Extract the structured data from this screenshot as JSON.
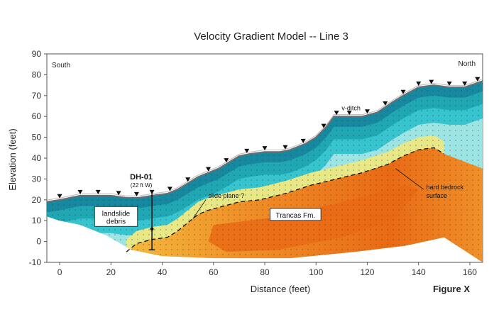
{
  "chart_data": {
    "type": "section",
    "title": "Velocity Gradient Model -- Line 3",
    "xlabel": "Distance (feet)",
    "ylabel": "Elevation (feet)",
    "figure_label": "Figure X",
    "xlim": [
      -5,
      165
    ],
    "ylim": [
      -10,
      90
    ],
    "xticks": [
      0,
      20,
      40,
      60,
      80,
      100,
      120,
      140,
      160
    ],
    "yticks": [
      -10,
      0,
      10,
      20,
      30,
      40,
      50,
      60,
      70,
      80,
      90
    ],
    "direction_labels": {
      "left": "South",
      "right": "North"
    },
    "ground_surface": [
      [
        -5,
        19
      ],
      [
        0,
        20
      ],
      [
        8,
        22
      ],
      [
        14,
        22
      ],
      [
        20,
        22
      ],
      [
        26,
        21
      ],
      [
        31,
        21
      ],
      [
        36,
        22
      ],
      [
        42,
        23
      ],
      [
        46,
        25
      ],
      [
        50,
        28
      ],
      [
        54,
        31
      ],
      [
        58,
        33
      ],
      [
        62,
        35
      ],
      [
        66,
        38
      ],
      [
        70,
        41
      ],
      [
        74,
        42
      ],
      [
        80,
        43
      ],
      [
        86,
        43
      ],
      [
        90,
        44
      ],
      [
        96,
        47
      ],
      [
        100,
        50
      ],
      [
        104,
        55
      ],
      [
        107,
        60
      ],
      [
        112,
        60
      ],
      [
        118,
        60
      ],
      [
        124,
        62
      ],
      [
        130,
        67
      ],
      [
        134,
        70
      ],
      [
        140,
        74
      ],
      [
        146,
        75
      ],
      [
        152,
        74
      ],
      [
        158,
        74
      ],
      [
        165,
        77
      ]
    ],
    "geophones_x": [
      0,
      8,
      15,
      23,
      30,
      36,
      43,
      50,
      58,
      65,
      73,
      80,
      88,
      95,
      103,
      108,
      113,
      120,
      127,
      134,
      140,
      145,
      152,
      158,
      163
    ],
    "slide_plane": [
      [
        26,
        -5
      ],
      [
        30,
        -1
      ],
      [
        36,
        1
      ],
      [
        42,
        2
      ],
      [
        46,
        5
      ],
      [
        50,
        9
      ],
      [
        54,
        13
      ],
      [
        58,
        15
      ],
      [
        64,
        17
      ],
      [
        70,
        19
      ],
      [
        78,
        20
      ],
      [
        88,
        23
      ],
      [
        98,
        27
      ],
      [
        108,
        30
      ],
      [
        118,
        33
      ],
      [
        128,
        37
      ],
      [
        134,
        41
      ],
      [
        140,
        44
      ],
      [
        146,
        45
      ],
      [
        150,
        42
      ]
    ],
    "borehole": {
      "label": "DH-01",
      "sublabel": "(22 ft W)",
      "x": 36,
      "top": 23,
      "bottom": -4,
      "sample_depth": 6
    },
    "annotations": [
      {
        "text": "v-ditch",
        "x": 110,
        "y": 63
      },
      {
        "text": "slide plane ?",
        "x": 58,
        "y": 21
      },
      {
        "text": "hard bedrock",
        "x": 143,
        "y": 25
      },
      {
        "text": "surface",
        "x": 143,
        "y": 21
      }
    ],
    "unit_labels": [
      {
        "lines": [
          "landslide",
          "debris"
        ],
        "x": 22,
        "y": 12
      },
      {
        "lines": [
          "Trancas Fm."
        ],
        "x": 92,
        "y": 13
      }
    ],
    "velocity_colors": {
      "low": "#9de4e4",
      "mid_low": "#36c4cf",
      "mid": "#1fa8b4",
      "high_near_surface": "#1688a0",
      "transition": "#e8e887",
      "bedrock_low": "#f5c040",
      "bedrock": "#f09028",
      "bedrock_high": "#ea6a14"
    }
  }
}
